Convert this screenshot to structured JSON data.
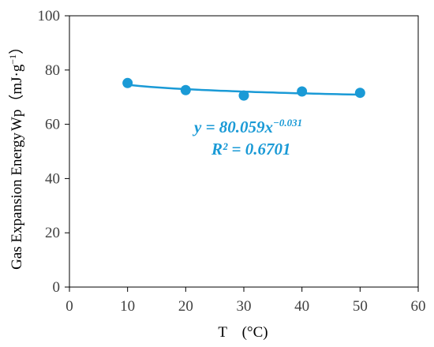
{
  "chart_data": {
    "type": "scatter",
    "x": [
      10,
      20,
      30,
      40,
      50
    ],
    "y": [
      75.2,
      72.6,
      70.6,
      72.1,
      71.6
    ],
    "xlim": [
      0,
      60
    ],
    "ylim": [
      0,
      100
    ],
    "xticks": [
      "0",
      "10",
      "20",
      "30",
      "40",
      "50",
      "60"
    ],
    "yticks": [
      "0",
      "20",
      "40",
      "60",
      "80",
      "100"
    ],
    "xlabel": "T　(°C)",
    "ylabel_line1": "Gas Expansion Energy",
    "ylabel_line2": "Wp（mJ·g",
    "ylabel_sup": "−1",
    "ylabel_close": "）",
    "trendline": {
      "type": "power",
      "a": 80.059,
      "b": -0.031,
      "equation_prefix": "y = 80.059x",
      "equation_exp": "−0.031",
      "r2_label": "R² = 0.6701"
    },
    "grid": false,
    "legend": "none",
    "colors": {
      "series": "#1a9ad6",
      "axis": "#000000"
    }
  }
}
